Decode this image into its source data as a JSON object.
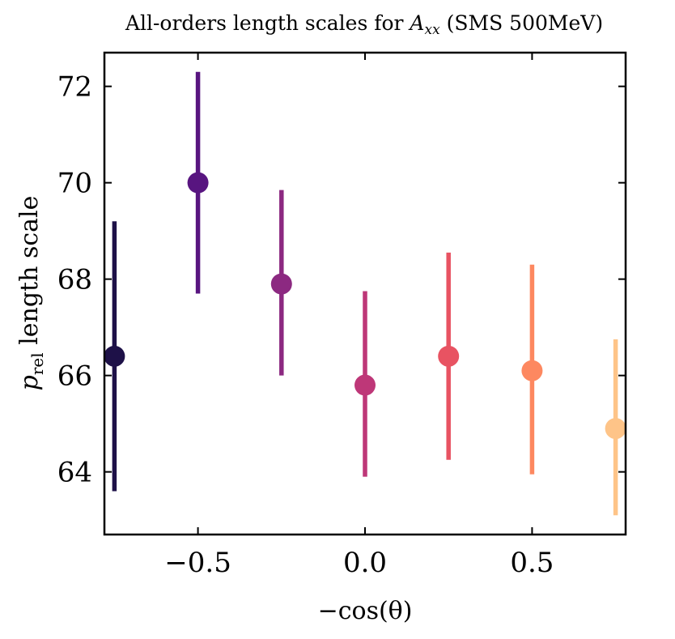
{
  "chart_data": {
    "type": "scatter",
    "title": "All-orders length scales for A_xx (SMS 500MeV)",
    "title_parts": {
      "prefix": "All-orders length scales for ",
      "math_main": "A",
      "math_sub": "xx",
      "suffix": " (SMS 500MeV)"
    },
    "xlabel": "−cos(θ)",
    "ylabel": "p_rel length scale",
    "ylabel_parts": {
      "main": "p",
      "sub": "rel",
      "suffix": " length scale"
    },
    "xlim": [
      -0.78,
      0.78
    ],
    "ylim": [
      62.7,
      72.7
    ],
    "x_ticks": [
      {
        "value": -0.5,
        "label": "−0.5"
      },
      {
        "value": 0.0,
        "label": "0.0"
      },
      {
        "value": 0.5,
        "label": "0.5"
      }
    ],
    "y_ticks": [
      {
        "value": 64,
        "label": "64"
      },
      {
        "value": 66,
        "label": "66"
      },
      {
        "value": 68,
        "label": "68"
      },
      {
        "value": 70,
        "label": "70"
      },
      {
        "value": 72,
        "label": "72"
      }
    ],
    "grid": false,
    "points": [
      {
        "x": -0.75,
        "y": 66.4,
        "lower": 63.6,
        "upper": 69.2,
        "color": "#1e1148"
      },
      {
        "x": -0.5,
        "y": 70.0,
        "lower": 67.7,
        "upper": 72.3,
        "color": "#581580"
      },
      {
        "x": -0.25,
        "y": 67.9,
        "lower": 66.0,
        "upper": 69.85,
        "color": "#8c2981"
      },
      {
        "x": 0.0,
        "y": 65.8,
        "lower": 63.9,
        "upper": 67.75,
        "color": "#be3778"
      },
      {
        "x": 0.25,
        "y": 66.4,
        "lower": 64.25,
        "upper": 68.55,
        "color": "#e85362"
      },
      {
        "x": 0.5,
        "y": 66.1,
        "lower": 63.95,
        "upper": 68.3,
        "color": "#fd8860"
      },
      {
        "x": 0.75,
        "y": 64.9,
        "lower": 63.1,
        "upper": 66.75,
        "color": "#fec488"
      }
    ]
  }
}
